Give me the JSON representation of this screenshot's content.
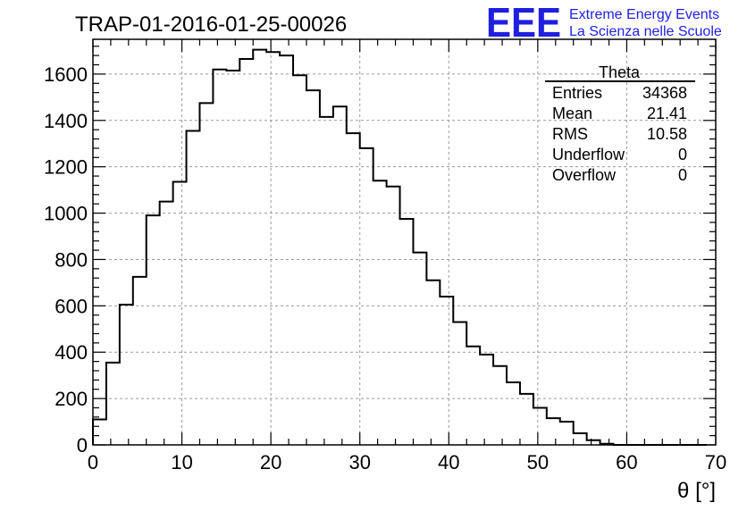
{
  "header": {
    "run_title": "TRAP-01-2016-01-25-00026",
    "logo_text": "EEE",
    "logo_line1": "Extreme Energy Events",
    "logo_line2": "La Scienza nelle Scuole",
    "logo_color": "#1f1fe0"
  },
  "stats": {
    "title": "Theta",
    "rows": [
      {
        "label": "Entries",
        "value": "34368"
      },
      {
        "label": "Mean",
        "value": "21.41"
      },
      {
        "label": "RMS",
        "value": "10.58"
      },
      {
        "label": "Underflow",
        "value": "0"
      },
      {
        "label": "Overflow",
        "value": "0"
      }
    ]
  },
  "chart_data": {
    "type": "histogram",
    "xlabel": "θ [°]",
    "ylabel": "",
    "xlim": [
      0,
      70
    ],
    "ylim": [
      0,
      1750
    ],
    "grid": true,
    "line_color": "#000000",
    "x_ticks": [
      0,
      10,
      20,
      30,
      40,
      50,
      60,
      70
    ],
    "y_ticks": [
      0,
      200,
      400,
      600,
      800,
      1000,
      1200,
      1400,
      1600
    ],
    "bin_width": 1.5,
    "bin_edges_start": 0,
    "values": [
      110,
      355,
      605,
      725,
      990,
      1050,
      1135,
      1355,
      1475,
      1620,
      1615,
      1665,
      1705,
      1695,
      1680,
      1595,
      1530,
      1415,
      1460,
      1345,
      1280,
      1140,
      1115,
      975,
      830,
      710,
      640,
      530,
      425,
      390,
      340,
      270,
      220,
      160,
      115,
      100,
      50,
      20,
      5,
      0,
      0,
      0,
      0,
      0,
      0,
      0
    ]
  }
}
